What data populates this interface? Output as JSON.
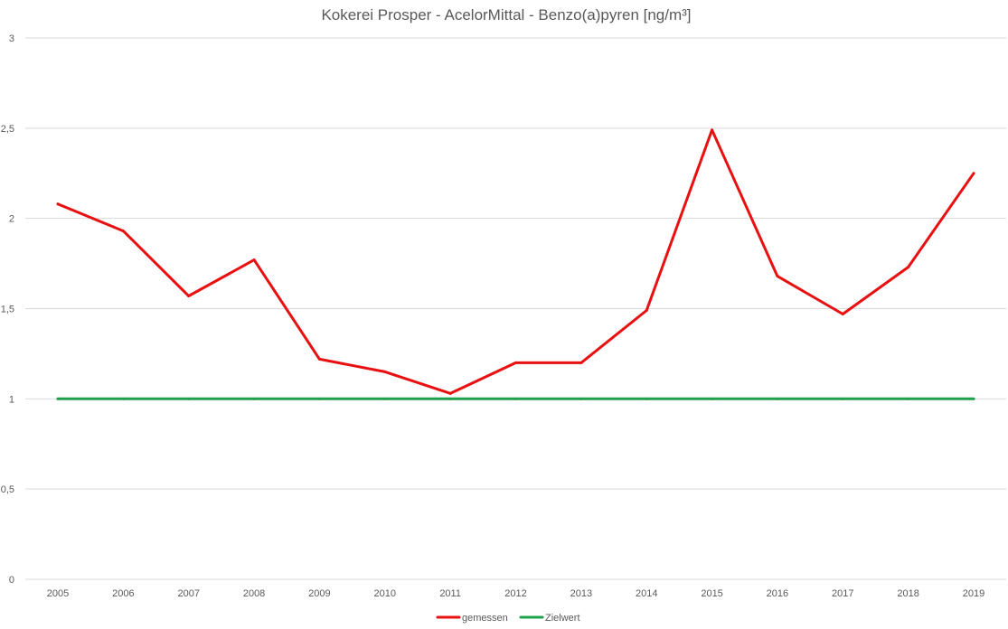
{
  "chart_data": {
    "type": "line",
    "title": "Kokerei Prosper - AcelorMittal - Benzo(a)pyren [ng/m³]",
    "xlabel": "",
    "ylabel": "",
    "categories": [
      "2005",
      "2006",
      "2007",
      "2008",
      "2009",
      "2010",
      "2011",
      "2012",
      "2013",
      "2014",
      "2015",
      "2016",
      "2017",
      "2018",
      "2019"
    ],
    "ylim": [
      0,
      3
    ],
    "yticks": [
      "0",
      "0,5",
      "1",
      "1,5",
      "2",
      "2,5",
      "3"
    ],
    "grid": true,
    "legend_position": "bottom",
    "series": [
      {
        "name": "gemessen",
        "color": "#e81010",
        "values": [
          2.08,
          1.93,
          1.57,
          1.77,
          1.22,
          1.15,
          1.03,
          1.2,
          1.2,
          1.49,
          2.49,
          1.68,
          1.47,
          1.73,
          2.25
        ]
      },
      {
        "name": "Zielwert",
        "color": "#1fa04a",
        "values": [
          1,
          1,
          1,
          1,
          1,
          1,
          1,
          1,
          1,
          1,
          1,
          1,
          1,
          1,
          1
        ]
      }
    ]
  }
}
